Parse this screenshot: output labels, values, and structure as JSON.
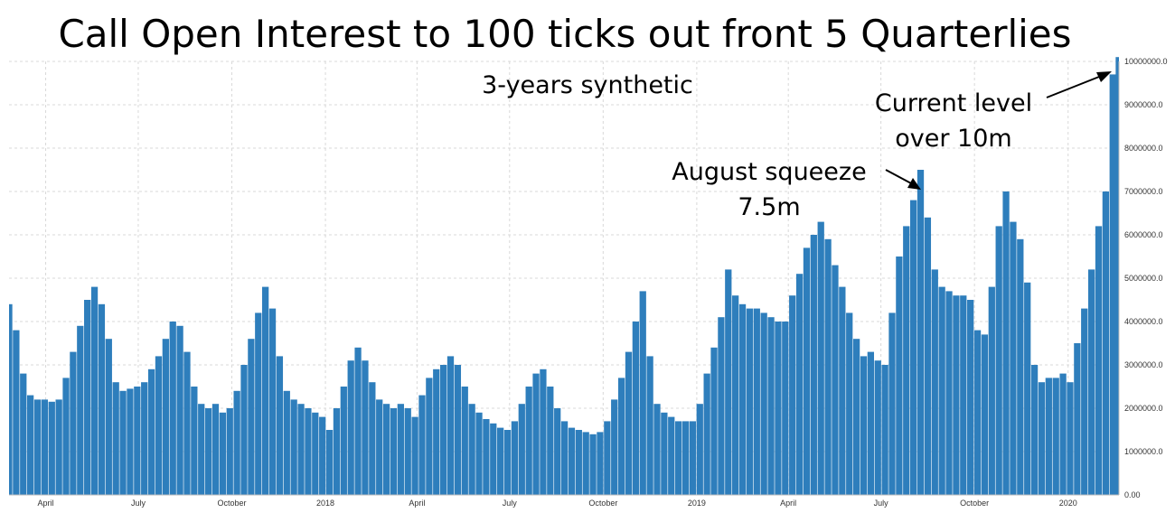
{
  "chart_data": {
    "type": "bar",
    "title": "Call Open Interest to 100 ticks out front 5 Quarterlies",
    "subtitle": "3-years synthetic",
    "bar_color": "#2e7ebc",
    "grid": true,
    "ylim": [
      0,
      10000000
    ],
    "yticks": [
      {
        "value": 0,
        "label": "0.00"
      },
      {
        "value": 1000000,
        "label": "1000000.0"
      },
      {
        "value": 2000000,
        "label": "2000000.0"
      },
      {
        "value": 3000000,
        "label": "3000000.0"
      },
      {
        "value": 4000000,
        "label": "4000000.0"
      },
      {
        "value": 5000000,
        "label": "5000000.0"
      },
      {
        "value": 6000000,
        "label": "6000000.0"
      },
      {
        "value": 7000000,
        "label": "7000000.0"
      },
      {
        "value": 8000000,
        "label": "8000000.0"
      },
      {
        "value": 9000000,
        "label": "9000000.0"
      },
      {
        "value": 10000000,
        "label": "10000000.0"
      }
    ],
    "xlim": [
      "2017-02-24",
      "2020-02-20"
    ],
    "xticks": [
      {
        "date": "2017-04-01",
        "label": "April"
      },
      {
        "date": "2017-07-01",
        "label": "July"
      },
      {
        "date": "2017-10-01",
        "label": "October"
      },
      {
        "date": "2018-01-01",
        "label": "2018"
      },
      {
        "date": "2018-04-01",
        "label": "April"
      },
      {
        "date": "2018-07-01",
        "label": "July"
      },
      {
        "date": "2018-10-01",
        "label": "October"
      },
      {
        "date": "2019-01-01",
        "label": "2019"
      },
      {
        "date": "2019-04-01",
        "label": "April"
      },
      {
        "date": "2019-07-01",
        "label": "July"
      },
      {
        "date": "2019-10-01",
        "label": "October"
      },
      {
        "date": "2020-01-01",
        "label": "2020"
      }
    ],
    "series": [
      {
        "points": [
          [
            "2017-02-24",
            4400000
          ],
          [
            "2017-03-03",
            3800000
          ],
          [
            "2017-03-10",
            2800000
          ],
          [
            "2017-03-17",
            2300000
          ],
          [
            "2017-03-24",
            2200000
          ],
          [
            "2017-03-31",
            2200000
          ],
          [
            "2017-04-07",
            2150000
          ],
          [
            "2017-04-14",
            2200000
          ],
          [
            "2017-04-21",
            2700000
          ],
          [
            "2017-04-28",
            3300000
          ],
          [
            "2017-05-05",
            3900000
          ],
          [
            "2017-05-12",
            4500000
          ],
          [
            "2017-05-19",
            4800000
          ],
          [
            "2017-05-26",
            4400000
          ],
          [
            "2017-06-02",
            3600000
          ],
          [
            "2017-06-09",
            2600000
          ],
          [
            "2017-06-16",
            2400000
          ],
          [
            "2017-06-23",
            2450000
          ],
          [
            "2017-06-30",
            2500000
          ],
          [
            "2017-07-07",
            2600000
          ],
          [
            "2017-07-14",
            2900000
          ],
          [
            "2017-07-21",
            3200000
          ],
          [
            "2017-07-28",
            3600000
          ],
          [
            "2017-08-04",
            4000000
          ],
          [
            "2017-08-11",
            3900000
          ],
          [
            "2017-08-18",
            3300000
          ],
          [
            "2017-08-25",
            2500000
          ],
          [
            "2017-09-01",
            2100000
          ],
          [
            "2017-09-08",
            2000000
          ],
          [
            "2017-09-15",
            2100000
          ],
          [
            "2017-09-22",
            1900000
          ],
          [
            "2017-09-29",
            2000000
          ],
          [
            "2017-10-06",
            2400000
          ],
          [
            "2017-10-13",
            3000000
          ],
          [
            "2017-10-20",
            3600000
          ],
          [
            "2017-10-27",
            4200000
          ],
          [
            "2017-11-03",
            4800000
          ],
          [
            "2017-11-10",
            4300000
          ],
          [
            "2017-11-17",
            3200000
          ],
          [
            "2017-11-24",
            2400000
          ],
          [
            "2017-12-01",
            2200000
          ],
          [
            "2017-12-08",
            2100000
          ],
          [
            "2017-12-15",
            2000000
          ],
          [
            "2017-12-22",
            1900000
          ],
          [
            "2017-12-29",
            1800000
          ],
          [
            "2018-01-05",
            1500000
          ],
          [
            "2018-01-12",
            2000000
          ],
          [
            "2018-01-19",
            2500000
          ],
          [
            "2018-01-26",
            3100000
          ],
          [
            "2018-02-02",
            3400000
          ],
          [
            "2018-02-09",
            3100000
          ],
          [
            "2018-02-16",
            2600000
          ],
          [
            "2018-02-23",
            2200000
          ],
          [
            "2018-03-02",
            2100000
          ],
          [
            "2018-03-09",
            2000000
          ],
          [
            "2018-03-16",
            2100000
          ],
          [
            "2018-03-23",
            2000000
          ],
          [
            "2018-03-30",
            1800000
          ],
          [
            "2018-04-06",
            2300000
          ],
          [
            "2018-04-13",
            2700000
          ],
          [
            "2018-04-20",
            2900000
          ],
          [
            "2018-04-27",
            3000000
          ],
          [
            "2018-05-04",
            3200000
          ],
          [
            "2018-05-11",
            3000000
          ],
          [
            "2018-05-18",
            2500000
          ],
          [
            "2018-05-25",
            2100000
          ],
          [
            "2018-06-01",
            1900000
          ],
          [
            "2018-06-08",
            1750000
          ],
          [
            "2018-06-15",
            1650000
          ],
          [
            "2018-06-22",
            1550000
          ],
          [
            "2018-06-29",
            1500000
          ],
          [
            "2018-07-06",
            1700000
          ],
          [
            "2018-07-13",
            2100000
          ],
          [
            "2018-07-20",
            2500000
          ],
          [
            "2018-07-27",
            2800000
          ],
          [
            "2018-08-03",
            2900000
          ],
          [
            "2018-08-10",
            2500000
          ],
          [
            "2018-08-17",
            2000000
          ],
          [
            "2018-08-24",
            1700000
          ],
          [
            "2018-08-31",
            1550000
          ],
          [
            "2018-09-07",
            1500000
          ],
          [
            "2018-09-14",
            1450000
          ],
          [
            "2018-09-21",
            1400000
          ],
          [
            "2018-09-28",
            1450000
          ],
          [
            "2018-10-05",
            1700000
          ],
          [
            "2018-10-12",
            2200000
          ],
          [
            "2018-10-19",
            2700000
          ],
          [
            "2018-10-26",
            3300000
          ],
          [
            "2018-11-02",
            4000000
          ],
          [
            "2018-11-09",
            4700000
          ],
          [
            "2018-11-16",
            3200000
          ],
          [
            "2018-11-23",
            2100000
          ],
          [
            "2018-11-30",
            1900000
          ],
          [
            "2018-12-07",
            1800000
          ],
          [
            "2018-12-14",
            1700000
          ],
          [
            "2018-12-21",
            1700000
          ],
          [
            "2018-12-28",
            1700000
          ],
          [
            "2019-01-04",
            2100000
          ],
          [
            "2019-01-11",
            2800000
          ],
          [
            "2019-01-18",
            3400000
          ],
          [
            "2019-01-25",
            4100000
          ],
          [
            "2019-02-01",
            5200000
          ],
          [
            "2019-02-08",
            4600000
          ],
          [
            "2019-02-15",
            4400000
          ],
          [
            "2019-02-22",
            4300000
          ],
          [
            "2019-03-01",
            4300000
          ],
          [
            "2019-03-08",
            4200000
          ],
          [
            "2019-03-15",
            4100000
          ],
          [
            "2019-03-22",
            4000000
          ],
          [
            "2019-03-29",
            4000000
          ],
          [
            "2019-04-05",
            4600000
          ],
          [
            "2019-04-12",
            5100000
          ],
          [
            "2019-04-19",
            5700000
          ],
          [
            "2019-04-26",
            6000000
          ],
          [
            "2019-05-03",
            6300000
          ],
          [
            "2019-05-10",
            5900000
          ],
          [
            "2019-05-17",
            5300000
          ],
          [
            "2019-05-24",
            4800000
          ],
          [
            "2019-05-31",
            4200000
          ],
          [
            "2019-06-07",
            3600000
          ],
          [
            "2019-06-14",
            3200000
          ],
          [
            "2019-06-21",
            3300000
          ],
          [
            "2019-06-28",
            3100000
          ],
          [
            "2019-07-05",
            3000000
          ],
          [
            "2019-07-12",
            4200000
          ],
          [
            "2019-07-19",
            5500000
          ],
          [
            "2019-07-26",
            6200000
          ],
          [
            "2019-08-02",
            6800000
          ],
          [
            "2019-08-09",
            7500000
          ],
          [
            "2019-08-16",
            6400000
          ],
          [
            "2019-08-23",
            5200000
          ],
          [
            "2019-08-30",
            4800000
          ],
          [
            "2019-09-06",
            4700000
          ],
          [
            "2019-09-13",
            4600000
          ],
          [
            "2019-09-20",
            4600000
          ],
          [
            "2019-09-27",
            4500000
          ],
          [
            "2019-10-04",
            3800000
          ],
          [
            "2019-10-11",
            3700000
          ],
          [
            "2019-10-18",
            4800000
          ],
          [
            "2019-10-25",
            6200000
          ],
          [
            "2019-11-01",
            7000000
          ],
          [
            "2019-11-08",
            6300000
          ],
          [
            "2019-11-15",
            5900000
          ],
          [
            "2019-11-22",
            4900000
          ],
          [
            "2019-11-29",
            3000000
          ],
          [
            "2019-12-06",
            2600000
          ],
          [
            "2019-12-13",
            2700000
          ],
          [
            "2019-12-20",
            2700000
          ],
          [
            "2019-12-27",
            2800000
          ],
          [
            "2020-01-03",
            2600000
          ],
          [
            "2020-01-10",
            3500000
          ],
          [
            "2020-01-17",
            4300000
          ],
          [
            "2020-01-24",
            5200000
          ],
          [
            "2020-01-31",
            6200000
          ],
          [
            "2020-02-07",
            7000000
          ],
          [
            "2020-02-14",
            9700000
          ],
          [
            "2020-02-20",
            10100000
          ]
        ]
      }
    ],
    "annotations": [
      {
        "lines": [
          "Current level",
          "over 10m"
        ],
        "target": [
          "2020-02-20",
          10100000
        ]
      },
      {
        "lines": [
          "August squeeze",
          "7.5m"
        ],
        "target": [
          "2019-08-09",
          7500000
        ]
      }
    ]
  }
}
